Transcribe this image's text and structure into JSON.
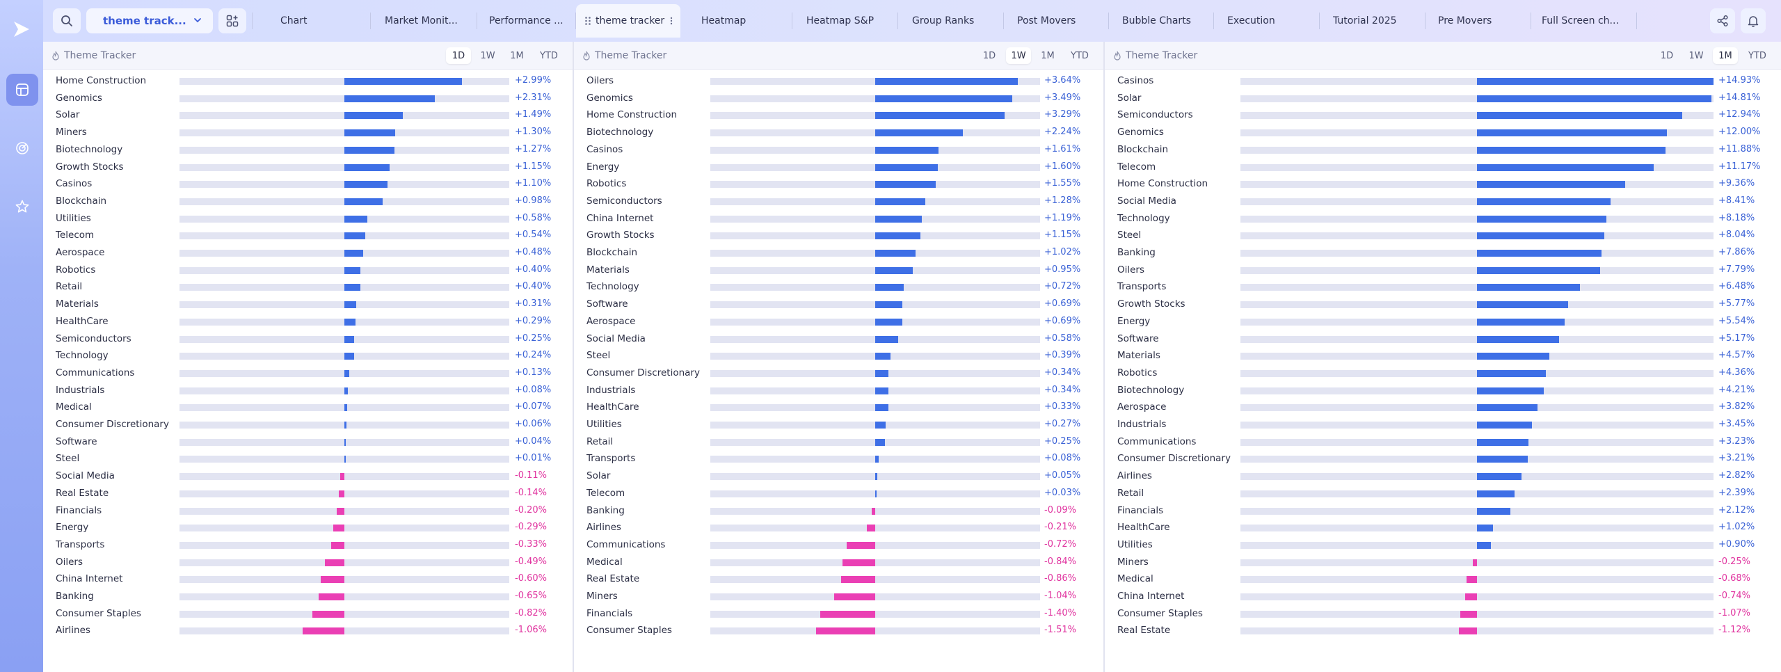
{
  "topbar": {
    "theme_select": "theme track...",
    "tabs": [
      {
        "label": "Chart"
      },
      {
        "label": "Market Monit..."
      },
      {
        "label": "Performance ..."
      },
      {
        "label": "theme tracker"
      },
      {
        "label": "Heatmap"
      },
      {
        "label": "Heatmap S&P"
      },
      {
        "label": "Group Ranks"
      },
      {
        "label": "Post Movers"
      },
      {
        "label": "Bubble Charts"
      },
      {
        "label": "Execution"
      },
      {
        "label": "Tutorial 2025"
      },
      {
        "label": "Pre Movers"
      },
      {
        "label": "Full Screen ch..."
      }
    ]
  },
  "colors": {
    "positive": "#3e6fe6",
    "negative": "#ea3fb4",
    "accent": "#3b5bd9"
  },
  "panels": [
    {
      "title": "Theme Tracker",
      "periods": [
        "1D",
        "1W",
        "1M",
        "YTD"
      ],
      "active_period": "1D",
      "scale": 4.2,
      "rows": [
        {
          "name": "Home Construction",
          "value": 2.99,
          "label": "+2.99%"
        },
        {
          "name": "Genomics",
          "value": 2.31,
          "label": "+2.31%"
        },
        {
          "name": "Solar",
          "value": 1.49,
          "label": "+1.49%"
        },
        {
          "name": "Miners",
          "value": 1.3,
          "label": "+1.30%"
        },
        {
          "name": "Biotechnology",
          "value": 1.27,
          "label": "+1.27%"
        },
        {
          "name": "Growth Stocks",
          "value": 1.15,
          "label": "+1.15%"
        },
        {
          "name": "Casinos",
          "value": 1.1,
          "label": "+1.10%"
        },
        {
          "name": "Blockchain",
          "value": 0.98,
          "label": "+0.98%"
        },
        {
          "name": "Utilities",
          "value": 0.58,
          "label": "+0.58%"
        },
        {
          "name": "Telecom",
          "value": 0.54,
          "label": "+0.54%"
        },
        {
          "name": "Aerospace",
          "value": 0.48,
          "label": "+0.48%"
        },
        {
          "name": "Robotics",
          "value": 0.4,
          "label": "+0.40%"
        },
        {
          "name": "Retail",
          "value": 0.4,
          "label": "+0.40%"
        },
        {
          "name": "Materials",
          "value": 0.31,
          "label": "+0.31%"
        },
        {
          "name": "HealthCare",
          "value": 0.29,
          "label": "+0.29%"
        },
        {
          "name": "Semiconductors",
          "value": 0.25,
          "label": "+0.25%"
        },
        {
          "name": "Technology",
          "value": 0.24,
          "label": "+0.24%"
        },
        {
          "name": "Communications",
          "value": 0.13,
          "label": "+0.13%"
        },
        {
          "name": "Industrials",
          "value": 0.08,
          "label": "+0.08%"
        },
        {
          "name": "Medical",
          "value": 0.07,
          "label": "+0.07%"
        },
        {
          "name": "Consumer Discretionary",
          "value": 0.06,
          "label": "+0.06%"
        },
        {
          "name": "Software",
          "value": 0.04,
          "label": "+0.04%"
        },
        {
          "name": "Steel",
          "value": 0.01,
          "label": "+0.01%"
        },
        {
          "name": "Social Media",
          "value": -0.11,
          "label": "-0.11%"
        },
        {
          "name": "Real Estate",
          "value": -0.14,
          "label": "-0.14%"
        },
        {
          "name": "Financials",
          "value": -0.2,
          "label": "-0.20%"
        },
        {
          "name": "Energy",
          "value": -0.29,
          "label": "-0.29%"
        },
        {
          "name": "Transports",
          "value": -0.33,
          "label": "-0.33%"
        },
        {
          "name": "Oilers",
          "value": -0.49,
          "label": "-0.49%"
        },
        {
          "name": "China Internet",
          "value": -0.6,
          "label": "-0.60%"
        },
        {
          "name": "Banking",
          "value": -0.65,
          "label": "-0.65%"
        },
        {
          "name": "Consumer Staples",
          "value": -0.82,
          "label": "-0.82%"
        },
        {
          "name": "Airlines",
          "value": -1.06,
          "label": "-1.06%"
        }
      ]
    },
    {
      "title": "Theme Tracker",
      "periods": [
        "1D",
        "1W",
        "1M",
        "YTD"
      ],
      "active_period": "1W",
      "scale": 4.2,
      "rows": [
        {
          "name": "Oilers",
          "value": 3.64,
          "label": "+3.64%"
        },
        {
          "name": "Genomics",
          "value": 3.49,
          "label": "+3.49%"
        },
        {
          "name": "Home Construction",
          "value": 3.29,
          "label": "+3.29%"
        },
        {
          "name": "Biotechnology",
          "value": 2.24,
          "label": "+2.24%"
        },
        {
          "name": "Casinos",
          "value": 1.61,
          "label": "+1.61%"
        },
        {
          "name": "Energy",
          "value": 1.6,
          "label": "+1.60%"
        },
        {
          "name": "Robotics",
          "value": 1.55,
          "label": "+1.55%"
        },
        {
          "name": "Semiconductors",
          "value": 1.28,
          "label": "+1.28%"
        },
        {
          "name": "China Internet",
          "value": 1.19,
          "label": "+1.19%"
        },
        {
          "name": "Growth Stocks",
          "value": 1.15,
          "label": "+1.15%"
        },
        {
          "name": "Blockchain",
          "value": 1.02,
          "label": "+1.02%"
        },
        {
          "name": "Materials",
          "value": 0.95,
          "label": "+0.95%"
        },
        {
          "name": "Technology",
          "value": 0.72,
          "label": "+0.72%"
        },
        {
          "name": "Software",
          "value": 0.69,
          "label": "+0.69%"
        },
        {
          "name": "Aerospace",
          "value": 0.69,
          "label": "+0.69%"
        },
        {
          "name": "Social Media",
          "value": 0.58,
          "label": "+0.58%"
        },
        {
          "name": "Steel",
          "value": 0.39,
          "label": "+0.39%"
        },
        {
          "name": "Consumer Discretionary",
          "value": 0.34,
          "label": "+0.34%"
        },
        {
          "name": "Industrials",
          "value": 0.34,
          "label": "+0.34%"
        },
        {
          "name": "HealthCare",
          "value": 0.33,
          "label": "+0.33%"
        },
        {
          "name": "Utilities",
          "value": 0.27,
          "label": "+0.27%"
        },
        {
          "name": "Retail",
          "value": 0.25,
          "label": "+0.25%"
        },
        {
          "name": "Transports",
          "value": 0.08,
          "label": "+0.08%"
        },
        {
          "name": "Solar",
          "value": 0.05,
          "label": "+0.05%"
        },
        {
          "name": "Telecom",
          "value": 0.03,
          "label": "+0.03%"
        },
        {
          "name": "Banking",
          "value": -0.09,
          "label": "-0.09%"
        },
        {
          "name": "Airlines",
          "value": -0.21,
          "label": "-0.21%"
        },
        {
          "name": "Communications",
          "value": -0.72,
          "label": "-0.72%"
        },
        {
          "name": "Medical",
          "value": -0.84,
          "label": "-0.84%"
        },
        {
          "name": "Real Estate",
          "value": -0.86,
          "label": "-0.86%"
        },
        {
          "name": "Miners",
          "value": -1.04,
          "label": "-1.04%"
        },
        {
          "name": "Financials",
          "value": -1.4,
          "label": "-1.40%"
        },
        {
          "name": "Consumer Staples",
          "value": -1.51,
          "label": "-1.51%"
        }
      ]
    },
    {
      "title": "Theme Tracker",
      "periods": [
        "1D",
        "1W",
        "1M",
        "YTD"
      ],
      "active_period": "1M",
      "scale": 14.93,
      "rows": [
        {
          "name": "Casinos",
          "value": 14.93,
          "label": "+14.93%"
        },
        {
          "name": "Solar",
          "value": 14.81,
          "label": "+14.81%"
        },
        {
          "name": "Semiconductors",
          "value": 12.94,
          "label": "+12.94%"
        },
        {
          "name": "Genomics",
          "value": 12.0,
          "label": "+12.00%"
        },
        {
          "name": "Blockchain",
          "value": 11.88,
          "label": "+11.88%"
        },
        {
          "name": "Telecom",
          "value": 11.17,
          "label": "+11.17%"
        },
        {
          "name": "Home Construction",
          "value": 9.36,
          "label": "+9.36%"
        },
        {
          "name": "Social Media",
          "value": 8.41,
          "label": "+8.41%"
        },
        {
          "name": "Technology",
          "value": 8.18,
          "label": "+8.18%"
        },
        {
          "name": "Steel",
          "value": 8.04,
          "label": "+8.04%"
        },
        {
          "name": "Banking",
          "value": 7.86,
          "label": "+7.86%"
        },
        {
          "name": "Oilers",
          "value": 7.79,
          "label": "+7.79%"
        },
        {
          "name": "Transports",
          "value": 6.48,
          "label": "+6.48%"
        },
        {
          "name": "Growth Stocks",
          "value": 5.77,
          "label": "+5.77%"
        },
        {
          "name": "Energy",
          "value": 5.54,
          "label": "+5.54%"
        },
        {
          "name": "Software",
          "value": 5.17,
          "label": "+5.17%"
        },
        {
          "name": "Materials",
          "value": 4.57,
          "label": "+4.57%"
        },
        {
          "name": "Robotics",
          "value": 4.36,
          "label": "+4.36%"
        },
        {
          "name": "Biotechnology",
          "value": 4.21,
          "label": "+4.21%"
        },
        {
          "name": "Aerospace",
          "value": 3.82,
          "label": "+3.82%"
        },
        {
          "name": "Industrials",
          "value": 3.45,
          "label": "+3.45%"
        },
        {
          "name": "Communications",
          "value": 3.23,
          "label": "+3.23%"
        },
        {
          "name": "Consumer Discretionary",
          "value": 3.21,
          "label": "+3.21%"
        },
        {
          "name": "Airlines",
          "value": 2.82,
          "label": "+2.82%"
        },
        {
          "name": "Retail",
          "value": 2.39,
          "label": "+2.39%"
        },
        {
          "name": "Financials",
          "value": 2.12,
          "label": "+2.12%"
        },
        {
          "name": "HealthCare",
          "value": 1.02,
          "label": "+1.02%"
        },
        {
          "name": "Utilities",
          "value": 0.9,
          "label": "+0.90%"
        },
        {
          "name": "Miners",
          "value": -0.25,
          "label": "-0.25%"
        },
        {
          "name": "Medical",
          "value": -0.68,
          "label": "-0.68%"
        },
        {
          "name": "China Internet",
          "value": -0.74,
          "label": "-0.74%"
        },
        {
          "name": "Consumer Staples",
          "value": -1.07,
          "label": "-1.07%"
        },
        {
          "name": "Real Estate",
          "value": -1.12,
          "label": "-1.12%"
        }
      ]
    }
  ]
}
